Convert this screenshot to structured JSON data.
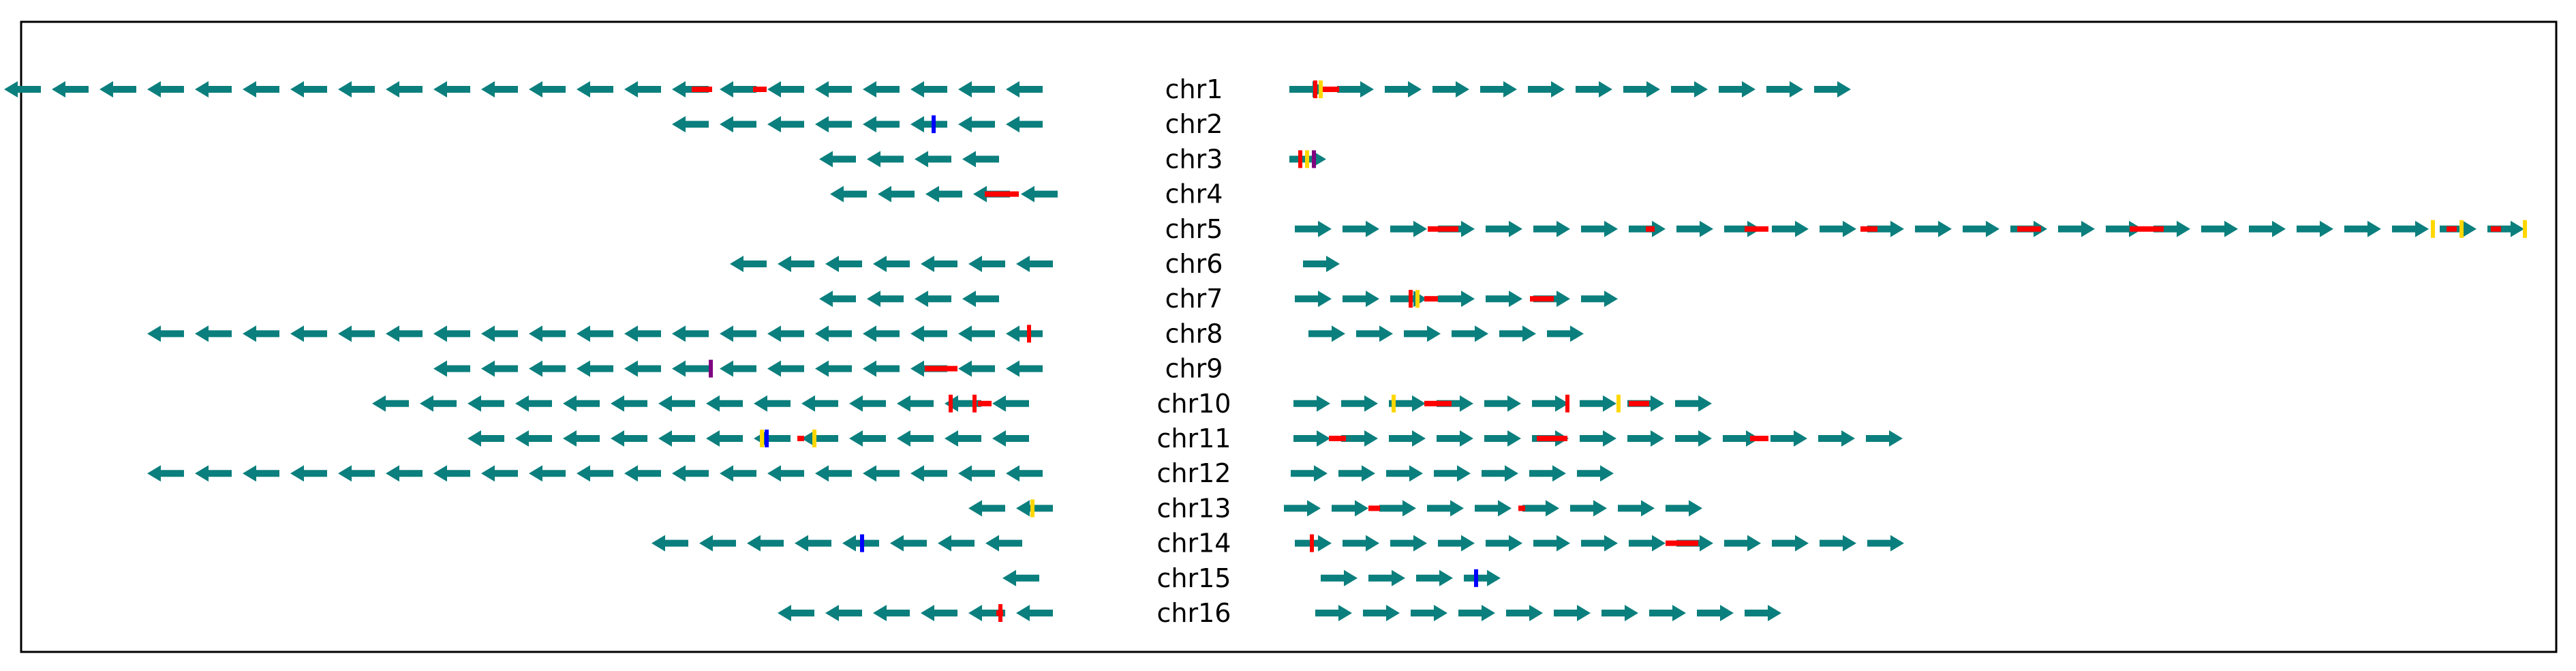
{
  "colors": {
    "gene_arrow": "#0b7f7d",
    "red_segment": "#ff0000",
    "yellow_mark": "#ffd700",
    "blue_mark": "#0000ff",
    "purple_mark": "#800080",
    "frame": "#000000"
  },
  "chromosomes": [
    {
      "label": "chr1",
      "left_arrows": 22,
      "right_arrows": 12
    },
    {
      "label": "chr2",
      "left_arrows": 8,
      "right_arrows": 0
    },
    {
      "label": "chr3",
      "left_arrows": 4,
      "right_arrows": 1
    },
    {
      "label": "chr4",
      "left_arrows": 5,
      "right_arrows": 0
    },
    {
      "label": "chr5",
      "left_arrows": 0,
      "right_arrows": 26
    },
    {
      "label": "chr6",
      "left_arrows": 7,
      "right_arrows": 1
    },
    {
      "label": "chr7",
      "left_arrows": 4,
      "right_arrows": 7
    },
    {
      "label": "chr8",
      "left_arrows": 19,
      "right_arrows": 6
    },
    {
      "label": "chr9",
      "left_arrows": 13,
      "right_arrows": 0
    },
    {
      "label": "chr10",
      "left_arrows": 14,
      "right_arrows": 9
    },
    {
      "label": "chr11",
      "left_arrows": 12,
      "right_arrows": 13
    },
    {
      "label": "chr12",
      "left_arrows": 19,
      "right_arrows": 7
    },
    {
      "label": "chr13",
      "left_arrows": 2,
      "right_arrows": 9
    },
    {
      "label": "chr14",
      "left_arrows": 8,
      "right_arrows": 13
    },
    {
      "label": "chr15",
      "left_arrows": 1,
      "right_arrows": 4
    },
    {
      "label": "chr16",
      "left_arrows": 6,
      "right_arrows": 10
    }
  ]
}
